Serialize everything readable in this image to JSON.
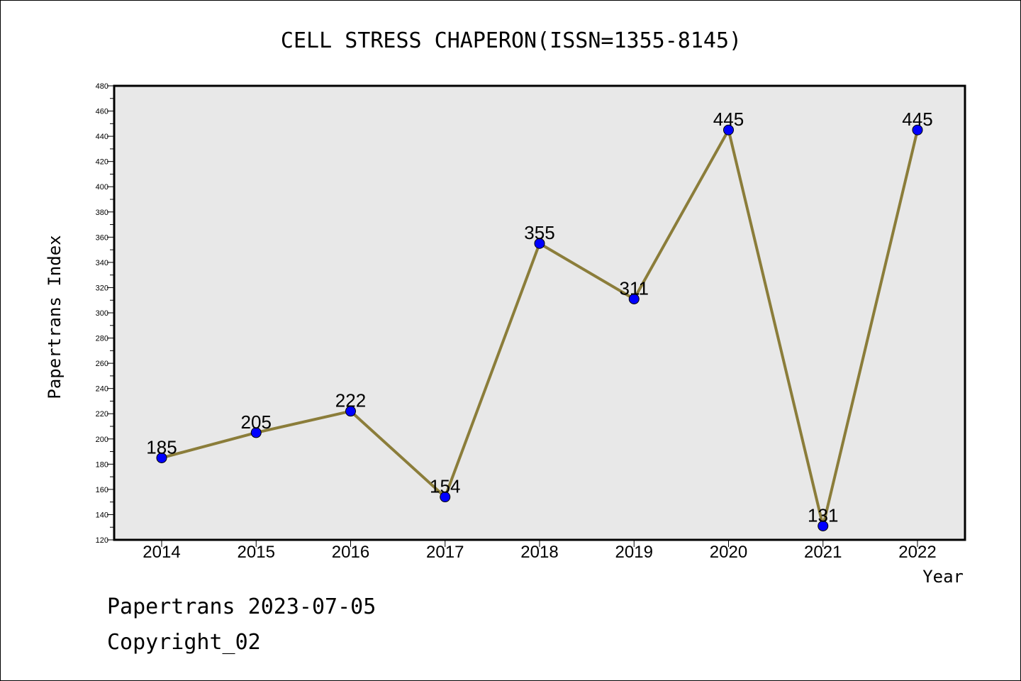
{
  "chart_data": {
    "type": "line",
    "title": "CELL STRESS CHAPERON(ISSN=1355-8145)",
    "xlabel": "Year",
    "ylabel": "Papertrans Index",
    "categories": [
      "2014",
      "2015",
      "2016",
      "2017",
      "2018",
      "2019",
      "2020",
      "2021",
      "2022"
    ],
    "values": [
      185,
      205,
      222,
      154,
      355,
      311,
      445,
      131,
      445
    ],
    "ylim": [
      120,
      480
    ],
    "ytick_step": 20,
    "grid": false,
    "line_color": "#8B7D3A",
    "marker_color": "#0000FF",
    "plot_background": "#E8E8E8"
  },
  "footer": {
    "date_line": "Papertrans 2023-07-05",
    "copyright_line": "Copyright_02"
  }
}
